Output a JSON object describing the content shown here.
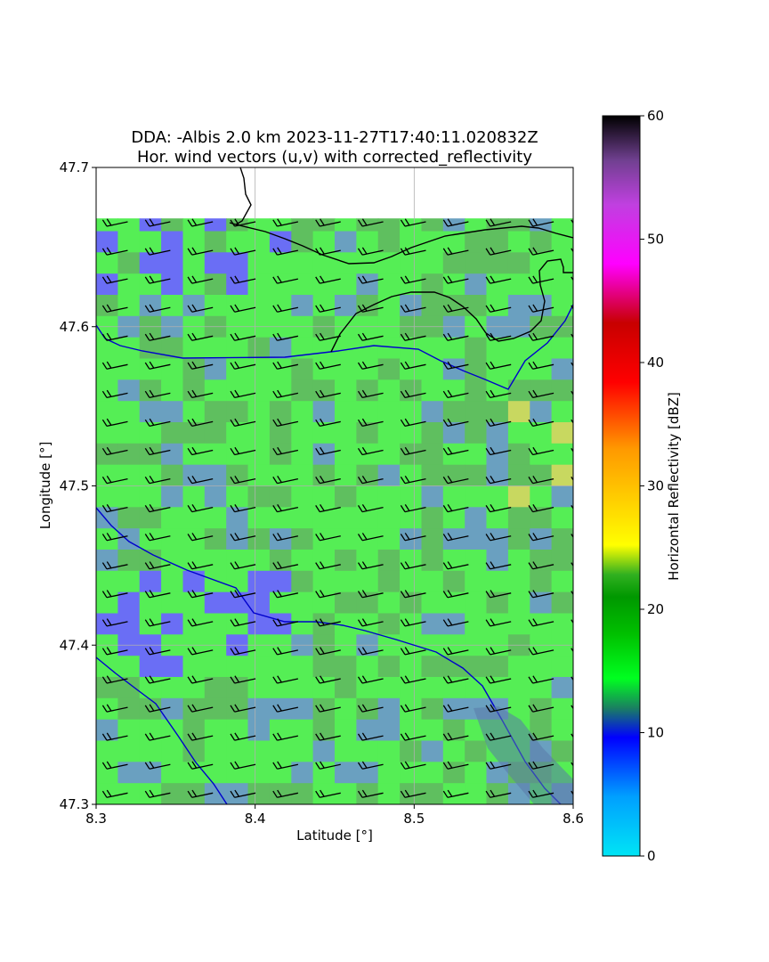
{
  "chart_data": {
    "type": "heatmap",
    "title": "DDA: -Albis 2.0 km 2023-11-27T17:40:11.020832Z",
    "subtitle": "Hor. wind vectors (u,v) with corrected_reflectivity",
    "xlabel": "Latitude [°]",
    "ylabel": "Longitude [°]",
    "xlim": [
      8.3,
      8.6
    ],
    "ylim": [
      47.3,
      47.7
    ],
    "x_ticks": [
      "8.3",
      "8.4",
      "8.5",
      "8.6"
    ],
    "y_ticks": [
      "47.3",
      "47.4",
      "47.5",
      "47.6",
      "47.7"
    ],
    "grid": true,
    "data_top_lat": 47.668,
    "colorbar": {
      "label": "Horizontal Reflectivity [dBZ]",
      "range": [
        0,
        60
      ],
      "ticks": [
        "0",
        "10",
        "20",
        "30",
        "40",
        "50",
        "60"
      ],
      "colors": [
        "#00e5f5",
        "#00a0ff",
        "#0000ff",
        "#00ff20",
        "#00a000",
        "#009800",
        "#ffff00",
        "#ff9900",
        "#ff0000",
        "#c80000",
        "#ff00ff",
        "#a050d0",
        "#000000"
      ]
    },
    "wind_barbs": {
      "direction": "westerly",
      "spacing_deg": 0.0133,
      "color": "#000000"
    },
    "dominant_reflectivity_dBZ": 14,
    "colors": {
      "low_reflectivity": "#6a6ef5",
      "moderate_low": "#6aa0c0",
      "typical": "#55ee55",
      "moderate_high": "#5fbf5f",
      "high": "#c8d860",
      "boundary_black": "#000000",
      "river_blue": "#0000cc"
    }
  }
}
